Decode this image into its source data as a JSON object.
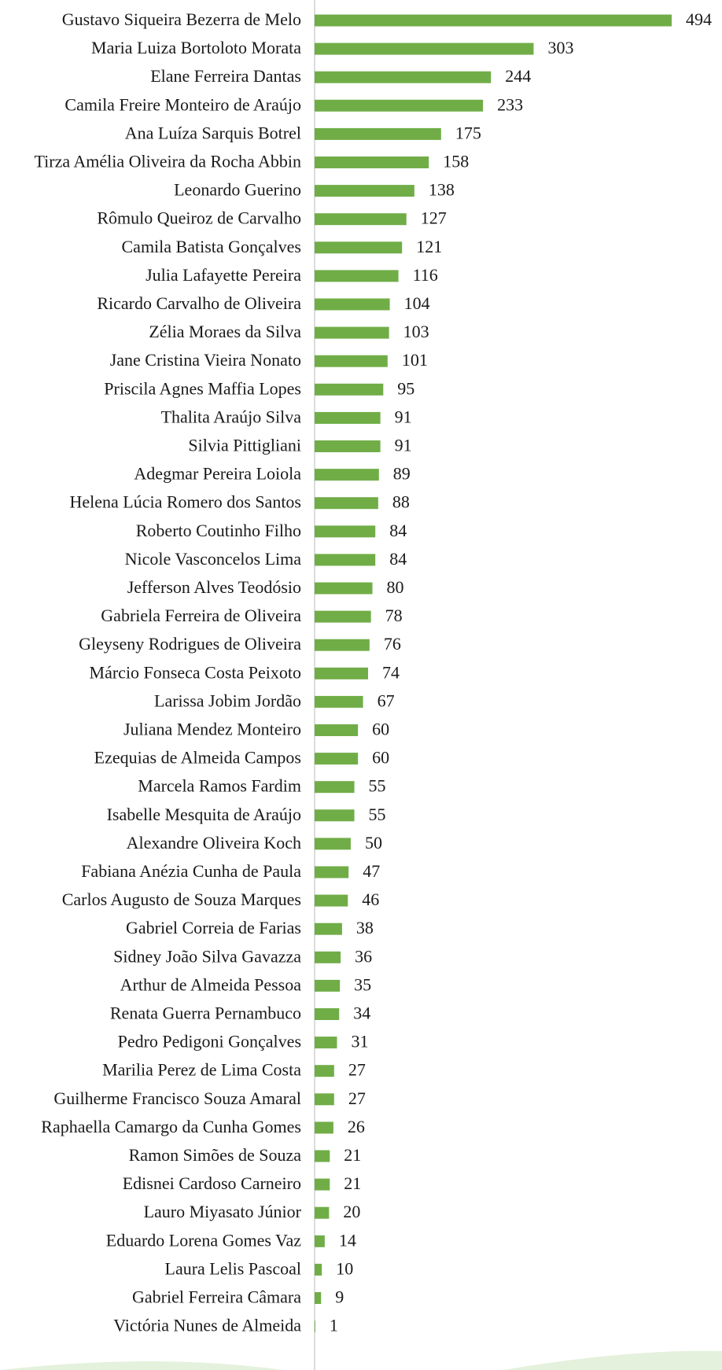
{
  "chart_data": {
    "type": "barh",
    "color": "#70ad47",
    "categories": [
      "Gustavo Siqueira Bezerra de Melo",
      "Maria Luiza Bortoloto Morata",
      "Elane Ferreira Dantas",
      "Camila Freire Monteiro de Araújo",
      "Ana Luíza Sarquis Botrel",
      "Tirza Amélia Oliveira da Rocha Abbin",
      "Leonardo Guerino",
      "Rômulo Queiroz de Carvalho",
      "Camila Batista Gonçalves",
      "Julia Lafayette Pereira",
      "Ricardo Carvalho de Oliveira",
      "Zélia Moraes da Silva",
      "Jane Cristina Vieira Nonato",
      "Priscila Agnes Maffia Lopes",
      "Thalita Araújo Silva",
      "Silvia Pittigliani",
      "Adegmar Pereira Loiola",
      "Helena Lúcia Romero dos Santos",
      "Roberto Coutinho Filho",
      "Nicole Vasconcelos Lima",
      "Jefferson Alves Teodósio",
      "Gabriela Ferreira de Oliveira",
      "Gleyseny Rodrigues de Oliveira",
      "Márcio Fonseca Costa Peixoto",
      "Larissa Jobim Jordão",
      "Juliana Mendez Monteiro",
      "Ezequias de Almeida Campos",
      "Marcela Ramos Fardim",
      "Isabelle Mesquita de Araújo",
      "Alexandre Oliveira Koch",
      "Fabiana Anézia Cunha de Paula",
      "Carlos Augusto de Souza Marques",
      "Gabriel Correia de Farias",
      "Sidney João Silva Gavazza",
      "Arthur de Almeida Pessoa",
      "Renata Guerra Pernambuco",
      "Pedro Pedigoni Gonçalves",
      "Marilia Perez de Lima Costa",
      "Guilherme Francisco Souza Amaral",
      "Raphaella Camargo da Cunha Gomes",
      "Ramon Simões de Souza",
      "Edisnei Cardoso Carneiro",
      "Lauro Miyasato Júnior",
      "Eduardo Lorena Gomes Vaz",
      "Laura Lelis Pascoal",
      "Gabriel Ferreira Câmara",
      "Victória Nunes de Almeida"
    ],
    "values": [
      494,
      303,
      244,
      233,
      175,
      158,
      138,
      127,
      121,
      116,
      104,
      103,
      101,
      95,
      91,
      91,
      89,
      88,
      84,
      84,
      80,
      78,
      76,
      74,
      67,
      60,
      60,
      55,
      55,
      50,
      47,
      46,
      38,
      36,
      35,
      34,
      31,
      27,
      27,
      26,
      21,
      21,
      20,
      14,
      10,
      9,
      1
    ]
  }
}
